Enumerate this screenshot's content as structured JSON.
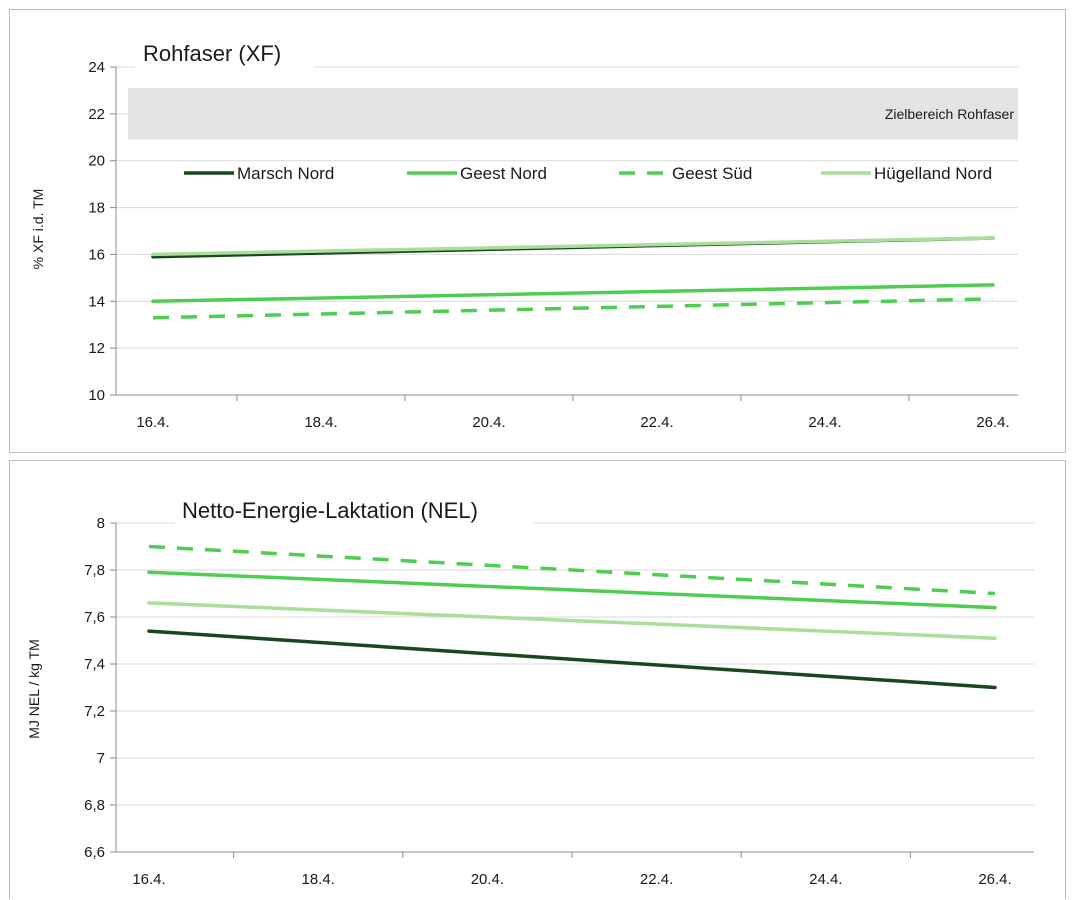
{
  "colors": {
    "marsch_nord": "#17461f",
    "geest_nord": "#4fcd52",
    "geest_sued": "#4fcd52",
    "huegelland_nord": "#a9df9a",
    "grid": "#d9d9d9",
    "band": "#e4e4e4"
  },
  "chart_data": [
    {
      "type": "line",
      "title": "Rohfaser (XF)",
      "ylabel": "% XF i.d. TM",
      "xlabel": "",
      "x_ticks": [
        "16.4.",
        "18.4.",
        "20.4.",
        "22.4.",
        "24.4.",
        "26.4."
      ],
      "ylim": [
        10,
        24
      ],
      "y_ticks": [
        "10",
        "12",
        "14",
        "16",
        "18",
        "20",
        "22",
        "24"
      ],
      "grid": "horizontal",
      "legend": "top, horizontal",
      "band": {
        "from": 20.9,
        "to": 23.1,
        "label": "Zielbereich Rohfaser"
      },
      "series": [
        {
          "name": "Marsch Nord",
          "style": "solid",
          "x": [
            "16.4.",
            "26.4."
          ],
          "values": [
            15.9,
            16.7
          ]
        },
        {
          "name": "Geest Nord",
          "style": "solid",
          "x": [
            "16.4.",
            "26.4."
          ],
          "values": [
            14.0,
            14.7
          ]
        },
        {
          "name": "Geest Süd",
          "style": "dashed",
          "x": [
            "16.4.",
            "26.4."
          ],
          "values": [
            13.3,
            14.1
          ]
        },
        {
          "name": "Hügelland Nord",
          "style": "solid",
          "x": [
            "16.4.",
            "26.4."
          ],
          "values": [
            16.0,
            16.7
          ]
        }
      ]
    },
    {
      "type": "line",
      "title": "Netto-Energie-Laktation (NEL)",
      "ylabel": "MJ NEL / kg TM",
      "xlabel": "",
      "x_ticks": [
        "16.4.",
        "18.4.",
        "20.4.",
        "22.4.",
        "24.4.",
        "26.4."
      ],
      "ylim": [
        6.6,
        8.0
      ],
      "y_ticks": [
        "6,6",
        "6,8",
        "7",
        "7,2",
        "7,4",
        "7,6",
        "7,8",
        "8"
      ],
      "grid": "horizontal",
      "series": [
        {
          "name": "Marsch Nord",
          "style": "solid",
          "x": [
            "16.4.",
            "26.4."
          ],
          "values": [
            7.54,
            7.3
          ]
        },
        {
          "name": "Geest Nord",
          "style": "solid",
          "x": [
            "16.4.",
            "26.4."
          ],
          "values": [
            7.79,
            7.64
          ]
        },
        {
          "name": "Geest Süd",
          "style": "dashed",
          "x": [
            "16.4.",
            "26.4."
          ],
          "values": [
            7.9,
            7.7
          ]
        },
        {
          "name": "Hügelland Nord",
          "style": "solid",
          "x": [
            "16.4.",
            "26.4."
          ],
          "values": [
            7.66,
            7.51
          ]
        }
      ]
    }
  ]
}
